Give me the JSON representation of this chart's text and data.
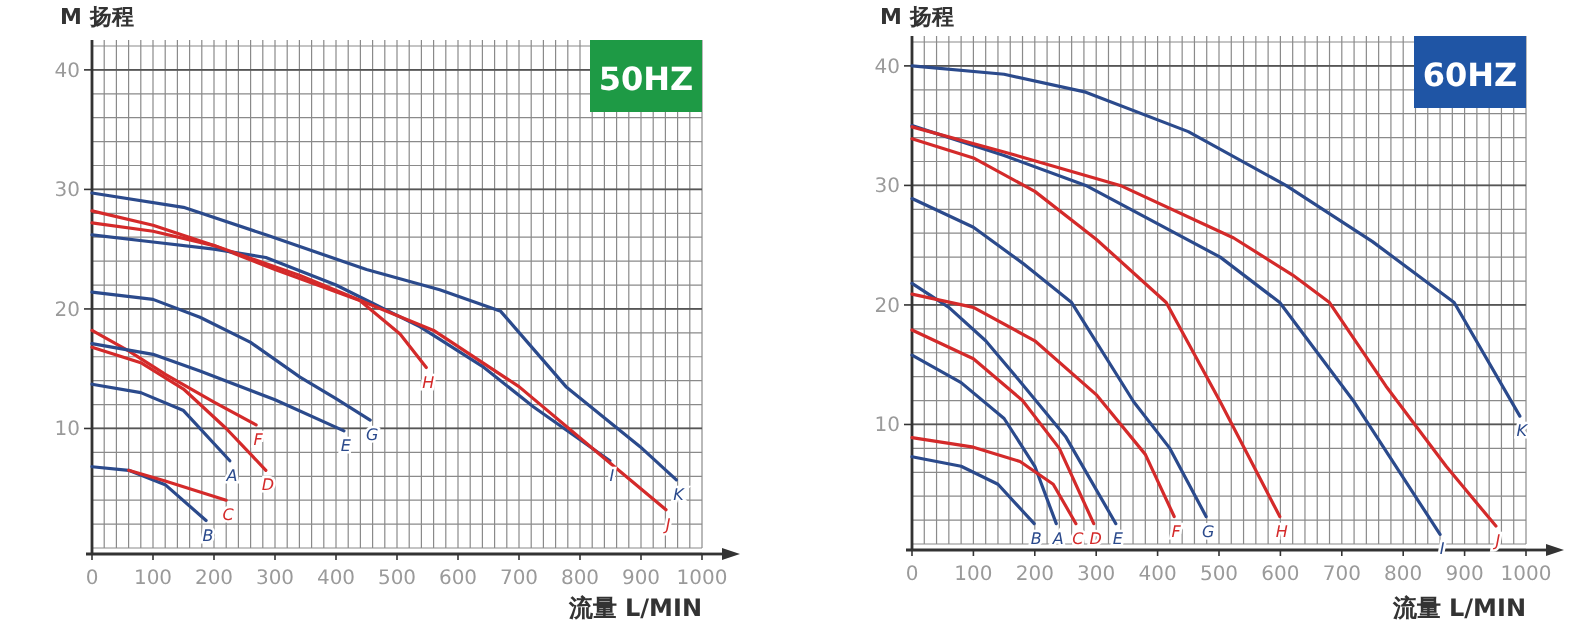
{
  "chart_data": [
    {
      "type": "line",
      "title": "50HZ",
      "xlabel": "流量 L/MIN",
      "ylabel": "M 扬程",
      "xlim": [
        0,
        1000
      ],
      "ylim": [
        0,
        42.5
      ],
      "xticks": [
        0,
        100,
        200,
        300,
        400,
        500,
        600,
        700,
        800,
        900,
        1000
      ],
      "yticks": [
        10,
        20,
        30,
        40
      ],
      "grid": true,
      "legend": false,
      "series": [
        {
          "name": "B",
          "color": "#2b4a8c",
          "x": [
            0,
            60,
            120,
            187
          ],
          "values": [
            6.8,
            6.5,
            5.3,
            2.3
          ]
        },
        {
          "name": "C",
          "color": "#d42a2a",
          "x": [
            60,
            120,
            220
          ],
          "values": [
            6.5,
            5.6,
            4
          ]
        },
        {
          "name": "A",
          "color": "#2b4a8c",
          "x": [
            0,
            80,
            150,
            226
          ],
          "values": [
            13.7,
            13,
            11.5,
            7.3
          ]
        },
        {
          "name": "D",
          "color": "#d42a2a",
          "x": [
            0,
            80,
            150,
            220,
            285
          ],
          "values": [
            16.8,
            15.5,
            13.3,
            10,
            6.5
          ]
        },
        {
          "name": "F",
          "color": "#d42a2a",
          "x": [
            0,
            60,
            121,
            200,
            269
          ],
          "values": [
            18.2,
            16.5,
            14.5,
            12.2,
            10.3
          ]
        },
        {
          "name": "E",
          "color": "#2b4a8c",
          "x": [
            0,
            100,
            177,
            300,
            413
          ],
          "values": [
            17.1,
            16.2,
            14.8,
            12.4,
            9.8
          ]
        },
        {
          "name": "G",
          "color": "#2b4a8c",
          "x": [
            0,
            100,
            177,
            260,
            341,
            400,
            456
          ],
          "values": [
            21.4,
            20.8,
            19.3,
            17.2,
            14.3,
            12.5,
            10.7
          ]
        },
        {
          "name": "H",
          "color": "#d42a2a",
          "x": [
            0,
            100,
            200,
            300,
            439,
            505,
            548
          ],
          "values": [
            28.2,
            27,
            25.3,
            23.3,
            20.7,
            17.9,
            15.1
          ]
        },
        {
          "name": "I",
          "color": "#2b4a8c",
          "x": [
            0,
            100,
            200,
            285,
            400,
            538,
            640,
            724,
            849
          ],
          "values": [
            26.2,
            25.6,
            25,
            24.3,
            22,
            18.5,
            15.2,
            11.8,
            7.3
          ]
        },
        {
          "name": "J",
          "color": "#d42a2a",
          "x": [
            0,
            100,
            200,
            341,
            450,
            560,
            700,
            833,
            941
          ],
          "values": [
            27.2,
            26.5,
            25.3,
            22.8,
            20.5,
            18.2,
            13.5,
            7.8,
            3.2
          ]
        },
        {
          "name": "K",
          "color": "#2b4a8c",
          "x": [
            0,
            150,
            285,
            450,
            570,
            670,
            777,
            898,
            958
          ],
          "values": [
            29.7,
            28.5,
            26.2,
            23.3,
            21.6,
            19.8,
            13.5,
            8.5,
            5.7
          ]
        }
      ]
    },
    {
      "type": "line",
      "title": "60HZ",
      "xlabel": "流量 L/MIN",
      "ylabel": "M 扬程",
      "xlim": [
        0,
        1000
      ],
      "ylim": [
        0,
        42.5
      ],
      "xticks": [
        0,
        100,
        200,
        300,
        400,
        500,
        600,
        700,
        800,
        900,
        1000
      ],
      "yticks": [
        10,
        20,
        30,
        40
      ],
      "grid": true,
      "legend": false,
      "series": [
        {
          "name": "B",
          "color": "#2b4a8c",
          "x": [
            0,
            80,
            140,
            199
          ],
          "values": [
            7.3,
            6.5,
            5,
            1.7
          ]
        },
        {
          "name": "A",
          "color": "#2b4a8c",
          "x": [
            0,
            80,
            150,
            200,
            235
          ],
          "values": [
            15.8,
            13.5,
            10.5,
            6.5,
            1.7
          ]
        },
        {
          "name": "C",
          "color": "#d42a2a",
          "x": [
            0,
            100,
            176,
            230,
            267
          ],
          "values": [
            8.9,
            8.1,
            6.9,
            5,
            1.7
          ]
        },
        {
          "name": "D",
          "color": "#d42a2a",
          "x": [
            0,
            100,
            180,
            240,
            296
          ],
          "values": [
            17.9,
            15.5,
            12,
            8,
            1.7
          ]
        },
        {
          "name": "E",
          "color": "#2b4a8c",
          "x": [
            0,
            60,
            120,
            176,
            250,
            332
          ],
          "values": [
            21.8,
            19.8,
            17,
            13.6,
            9,
            1.7
          ]
        },
        {
          "name": "F",
          "color": "#d42a2a",
          "x": [
            0,
            100,
            200,
            300,
            380,
            427
          ],
          "values": [
            20.9,
            19.8,
            17,
            12.5,
            7.5,
            2.3
          ]
        },
        {
          "name": "G",
          "color": "#2b4a8c",
          "x": [
            0,
            100,
            180,
            260,
            361,
            420,
            479
          ],
          "values": [
            28.9,
            26.5,
            23.5,
            20.2,
            11.9,
            8,
            2.3
          ]
        },
        {
          "name": "H",
          "color": "#d42a2a",
          "x": [
            0,
            100,
            200,
            300,
            414,
            502,
            599
          ],
          "values": [
            33.9,
            32.3,
            29.5,
            25.5,
            20.2,
            11.9,
            2.3
          ]
        },
        {
          "name": "I",
          "color": "#2b4a8c",
          "x": [
            0,
            150,
            283,
            502,
            599,
            720,
            860
          ],
          "values": [
            35,
            32.5,
            30,
            24,
            20.2,
            11.9,
            0.8
          ]
        },
        {
          "name": "J",
          "color": "#d42a2a",
          "x": [
            0,
            150,
            339,
            524,
            620,
            680,
            772,
            870,
            951
          ],
          "values": [
            34.9,
            32.8,
            30,
            25.6,
            22.5,
            20.2,
            13.2,
            6.5,
            1.5
          ]
        },
        {
          "name": "K",
          "color": "#2b4a8c",
          "x": [
            0,
            150,
            283,
            450,
            609,
            750,
            883,
            990
          ],
          "values": [
            40,
            39.3,
            37.8,
            34.5,
            30,
            25.3,
            20.2,
            10.7
          ]
        }
      ]
    }
  ]
}
